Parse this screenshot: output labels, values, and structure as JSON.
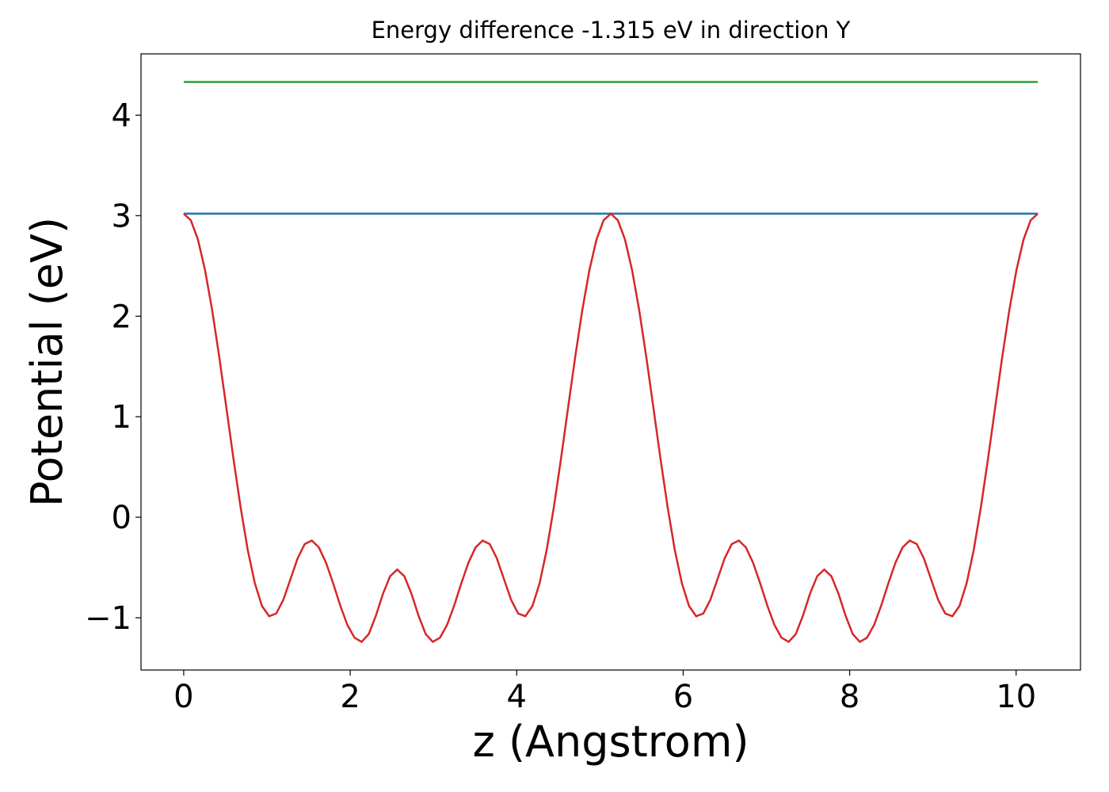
{
  "chart_data": {
    "type": "line",
    "title": "Energy difference -1.315 eV in direction Y",
    "xlabel": "z (Angstrom)",
    "ylabel": "Potential (eV)",
    "xlim": [
      -0.513,
      10.773
    ],
    "ylim": [
      -1.52,
      4.61
    ],
    "xticks": [
      0,
      2,
      4,
      6,
      8,
      10
    ],
    "yticks": [
      {
        "value": -1,
        "label": "−1"
      },
      0,
      1,
      2,
      3,
      4
    ],
    "grid": false,
    "series": [
      {
        "color": "#2ca02c",
        "x": [
          0,
          10.26
        ],
        "values": [
          4.33,
          4.33
        ]
      },
      {
        "color": "#1f77b4",
        "x": [
          0,
          10.26
        ],
        "values": [
          3.02,
          3.02
        ]
      },
      {
        "color": "#d62728",
        "x": [
          0,
          0.0855,
          0.171,
          0.2565,
          0.342,
          0.4275,
          0.513,
          0.5985,
          0.684,
          0.7695,
          0.855,
          0.9405,
          1.026,
          1.1115,
          1.197,
          1.2825,
          1.368,
          1.4535,
          1.539,
          1.6245,
          1.71,
          1.7955,
          1.881,
          1.9665,
          2.052,
          2.1375,
          2.223,
          2.3085,
          2.394,
          2.4795,
          2.565,
          2.6505,
          2.736,
          2.8215,
          2.907,
          2.9925,
          3.078,
          3.1635,
          3.249,
          3.3345,
          3.42,
          3.5055,
          3.591,
          3.6765,
          3.762,
          3.8475,
          3.933,
          4.0185,
          4.104,
          4.1895,
          4.275,
          4.3605,
          4.446,
          4.5315,
          4.617,
          4.7025,
          4.788,
          4.8735,
          4.959,
          5.0445,
          5.13,
          5.2155,
          5.301,
          5.3865,
          5.472,
          5.5575,
          5.643,
          5.7285,
          5.814,
          5.8995,
          5.985,
          6.0705,
          6.156,
          6.2415,
          6.327,
          6.4125,
          6.498,
          6.5835,
          6.669,
          6.7545,
          6.84,
          6.9255,
          7.011,
          7.0965,
          7.182,
          7.2675,
          7.353,
          7.4385,
          7.524,
          7.6095,
          7.695,
          7.7805,
          7.866,
          7.9515,
          8.037,
          8.1225,
          8.208,
          8.2935,
          8.379,
          8.4645,
          8.55,
          8.6355,
          8.721,
          8.8065,
          8.892,
          8.9775,
          9.063,
          9.1485,
          9.234,
          9.3195,
          9.405,
          9.4905,
          9.576,
          9.6615,
          9.747,
          9.8325,
          9.918,
          10.0035,
          10.089,
          10.1745,
          10.26
        ],
        "values": [
          3.02,
          2.955,
          2.763,
          2.458,
          2.059,
          1.592,
          1.087,
          0.577,
          0.097,
          -0.326,
          -0.658,
          -0.883,
          -0.985,
          -0.958,
          -0.821,
          -0.616,
          -0.41,
          -0.267,
          -0.232,
          -0.301,
          -0.453,
          -0.658,
          -0.879,
          -1.072,
          -1.199,
          -1.24,
          -1.162,
          -0.98,
          -0.761,
          -0.587,
          -0.52,
          -0.587,
          -0.761,
          -0.98,
          -1.162,
          -1.24,
          -1.199,
          -1.072,
          -0.879,
          -0.658,
          -0.453,
          -0.301,
          -0.232,
          -0.267,
          -0.41,
          -0.616,
          -0.821,
          -0.958,
          -0.985,
          -0.883,
          -0.658,
          -0.326,
          0.097,
          0.577,
          1.087,
          1.592,
          2.059,
          2.458,
          2.763,
          2.955,
          3.02,
          2.955,
          2.763,
          2.458,
          2.059,
          1.592,
          1.087,
          0.577,
          0.097,
          -0.326,
          -0.658,
          -0.883,
          -0.985,
          -0.958,
          -0.821,
          -0.616,
          -0.41,
          -0.267,
          -0.232,
          -0.301,
          -0.453,
          -0.658,
          -0.879,
          -1.072,
          -1.199,
          -1.24,
          -1.162,
          -0.98,
          -0.761,
          -0.587,
          -0.52,
          -0.587,
          -0.761,
          -0.98,
          -1.162,
          -1.24,
          -1.199,
          -1.072,
          -0.879,
          -0.658,
          -0.453,
          -0.301,
          -0.232,
          -0.267,
          -0.41,
          -0.616,
          -0.821,
          -0.958,
          -0.985,
          -0.883,
          -0.658,
          -0.326,
          0.097,
          0.577,
          1.087,
          1.592,
          2.059,
          2.458,
          2.763,
          2.955,
          3.02
        ]
      }
    ]
  }
}
